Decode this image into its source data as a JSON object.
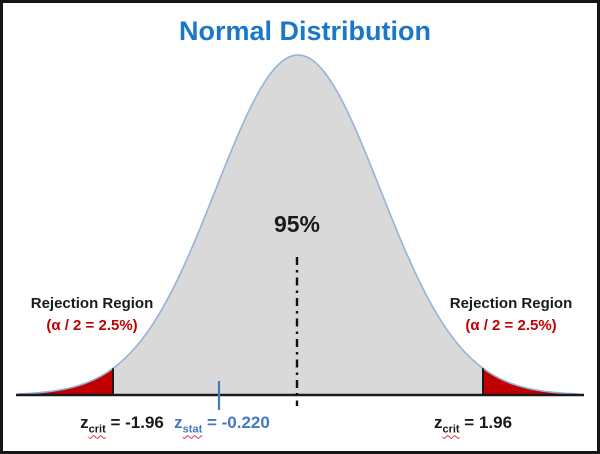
{
  "title": {
    "text": "Normal Distribution"
  },
  "labels": {
    "center_pct": "95%",
    "rejection_left": {
      "line1": "Rejection Region",
      "line2": "(α / 2 = 2.5%)"
    },
    "rejection_right": {
      "line1": "Rejection Region",
      "line2": "(α / 2 = 2.5%)"
    },
    "z_left": {
      "base": "z",
      "sub": "crit",
      "value": " = -1.96"
    },
    "z_stat": {
      "base": "z",
      "sub": "stat",
      "value": " = -0.220"
    },
    "z_right": {
      "base": "z",
      "sub": "crit",
      "value": " = 1.96"
    }
  },
  "chart_data": {
    "type": "area",
    "title": "Normal Distribution",
    "distribution": "normal (bell curve)",
    "confidence_region": {
      "label": "95%",
      "from_z": -1.96,
      "to_z": 1.96
    },
    "rejection_regions": [
      {
        "side": "left",
        "label": "Rejection Region",
        "alpha_over_2": "2.5%",
        "z_crit": -1.96
      },
      {
        "side": "right",
        "label": "Rejection Region",
        "alpha_over_2": "2.5%",
        "z_crit": 1.96
      }
    ],
    "z_stat": -0.22,
    "annotations": [
      "z_crit = -1.96",
      "z_stat = -0.220",
      "z_crit = 1.96",
      "dash-dot vertical line at distribution mean"
    ],
    "legend_position": "none",
    "grid": false
  },
  "colors": {
    "title_blue": "#1b78c8",
    "z_stat_blue": "#4478c0",
    "curve_stroke": "#95b3d7",
    "curve_fill": "#d9d9d9",
    "rejection_red": "#c00000",
    "text_black": "#1a1a1a",
    "border_black": "#161616"
  }
}
